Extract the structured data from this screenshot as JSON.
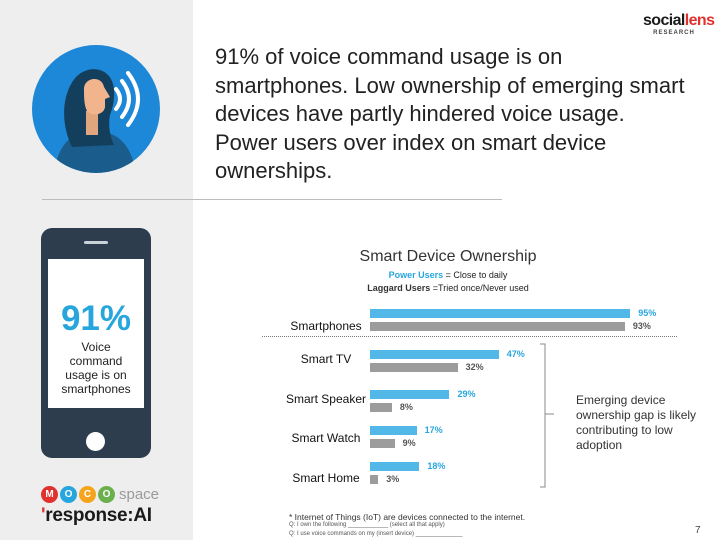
{
  "headline": "91% of voice command usage is on\nsmartphones. Low ownership of emerging smart\ndevices have partly hindered voice usage.\nPower users over index on smart device\nownerships.",
  "logo": {
    "main_a": "social",
    "main_b": "lens",
    "sub": "RESEARCH"
  },
  "phone": {
    "percent": "91%",
    "caption": "Voice command usage is on smartphones"
  },
  "brands": {
    "moco_letters": [
      "M",
      "O",
      "C",
      "O"
    ],
    "moco_colors": [
      "#e0312f",
      "#27a6de",
      "#f4a51c",
      "#6ab04c"
    ],
    "moco_space": "space",
    "response_prefix": "response:",
    "response_suffix": "AI"
  },
  "chart_data": {
    "type": "bar",
    "orientation": "horizontal",
    "title": "Smart Device Ownership",
    "legend": [
      {
        "key": "Power Users",
        "text": "= Close to daily",
        "color": "#27a6de"
      },
      {
        "key": "Laggard Users",
        "text": "=Tried once/Never used",
        "color": "#333333"
      }
    ],
    "categories": [
      "Smartphones",
      "Smart TV",
      "Smart Speaker",
      "Smart Watch",
      "Smart Home"
    ],
    "series": [
      {
        "name": "Power Users",
        "values": [
          95,
          47,
          29,
          17,
          18
        ],
        "labels": [
          "95%",
          "47%",
          "29%",
          "17%",
          "18%"
        ],
        "color": "#52b8e7"
      },
      {
        "name": "Laggard Users",
        "values": [
          93,
          32,
          8,
          9,
          3
        ],
        "labels": [
          "93%",
          "32%",
          "8%",
          "9%",
          "3%"
        ],
        "color": "#9c9c9c"
      }
    ],
    "xlim": [
      0,
      100
    ],
    "grid": false
  },
  "callout": "Emerging device ownership gap is likely contributing to low adoption",
  "footnotes": [
    "* Internet of Things (IoT) are devices connected to the internet.",
    "Q: I own the following ____________ (select all that apply)",
    "Q: I use voice commands on my (insert device) ______________"
  ],
  "page_number": "7"
}
